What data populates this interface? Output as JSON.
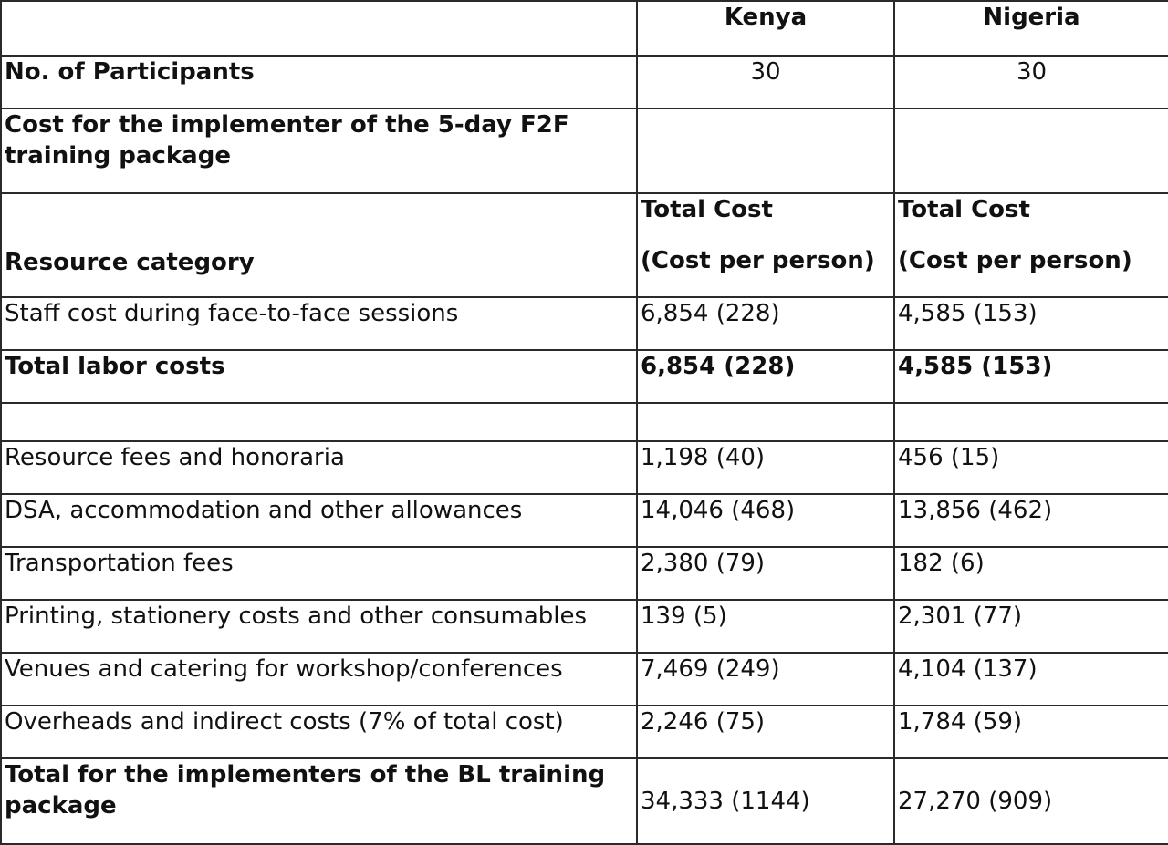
{
  "header": {
    "col1": "",
    "col2": "Kenya",
    "col3": "Nigeria"
  },
  "participants": {
    "label": "No. of Participants",
    "kenya": "30",
    "nigeria": "30"
  },
  "section_title": {
    "label": "Cost for the implementer of the 5-day F2F training package",
    "kenya": "",
    "nigeria": ""
  },
  "resource_header": {
    "label": "Resource category",
    "kenya_line1": "Total Cost",
    "kenya_line2": "(Cost per person)",
    "nigeria_line1": "Total Cost",
    "nigeria_line2": "(Cost per person)"
  },
  "rows": [
    {
      "label": "Staff cost during face-to-face sessions",
      "kenya": "6,854 (228)",
      "nigeria": "4,585 (153)"
    },
    {
      "label": "Total labor costs",
      "kenya": "6,854 (228)",
      "nigeria": "4,585 (153)"
    },
    {
      "label": "",
      "kenya": "",
      "nigeria": ""
    },
    {
      "label": "Resource fees and honoraria",
      "kenya": "1,198 (40)",
      "nigeria": "456 (15)"
    },
    {
      "label": "DSA, accommodation and other allowances",
      "kenya": "14,046 (468)",
      "nigeria": "13,856 (462)"
    },
    {
      "label": "Transportation fees",
      "kenya": "2,380 (79)",
      "nigeria": "182 (6)"
    },
    {
      "label": "Printing, stationery costs and other consumables",
      "kenya": "139 (5)",
      "nigeria": "2,301 (77)"
    },
    {
      "label": "Venues and catering for workshop/conferences",
      "kenya": "7,469 (249)",
      "nigeria": "4,104 (137)"
    },
    {
      "label": "Overheads and indirect costs (7% of total cost)",
      "kenya": "2,246 (75)",
      "nigeria": "1,784 (59)"
    }
  ],
  "total": {
    "label": "Total for the implementers of the BL training package",
    "kenya": "34,333 (1144)",
    "nigeria": "27,270 (909)"
  }
}
